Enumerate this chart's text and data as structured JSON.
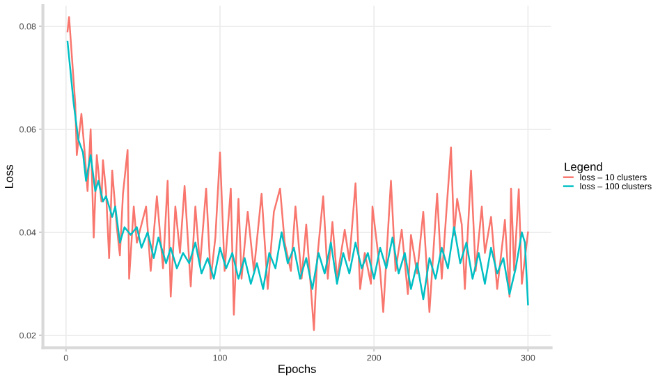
{
  "chart_data": {
    "type": "line",
    "xlabel": "Epochs",
    "ylabel": "Loss",
    "legend_title": "Legend",
    "legend": "right",
    "grid": true,
    "xlim": [
      -15,
      315
    ],
    "ylim": [
      0.0176,
      0.084
    ],
    "xticks": [
      0,
      100,
      200,
      300
    ],
    "yticks": [
      0.02,
      0.04,
      0.06,
      0.08
    ],
    "series": [
      {
        "name": "loss – 10 clusters",
        "color": "#f8766d",
        "x": [
          1,
          2,
          6,
          7,
          10,
          12,
          14,
          16,
          18,
          20,
          23,
          24,
          26,
          28,
          30,
          33,
          35,
          37,
          40,
          41,
          44,
          46,
          52,
          55,
          59,
          63,
          66,
          68,
          71,
          74,
          77,
          81,
          84,
          87,
          91,
          94,
          97,
          100,
          103,
          107,
          109,
          112,
          114,
          118,
          122,
          125,
          127,
          131,
          135,
          139,
          142,
          146,
          149,
          153,
          156,
          161,
          163,
          167,
          170,
          173,
          176,
          181,
          184,
          188,
          191,
          194,
          198,
          199,
          204,
          206,
          211,
          214,
          218,
          222,
          224,
          228,
          232,
          236,
          241,
          244,
          247,
          250,
          252,
          254,
          257,
          259,
          263,
          266,
          270,
          272,
          276,
          280,
          284,
          285,
          288,
          289,
          291,
          294,
          296,
          300
        ],
        "values": [
          0.079,
          0.0818,
          0.065,
          0.055,
          0.063,
          0.056,
          0.048,
          0.06,
          0.039,
          0.055,
          0.046,
          0.054,
          0.048,
          0.035,
          0.052,
          0.041,
          0.0355,
          0.0475,
          0.056,
          0.031,
          0.045,
          0.038,
          0.045,
          0.0325,
          0.047,
          0.033,
          0.05,
          0.0275,
          0.045,
          0.036,
          0.049,
          0.0295,
          0.045,
          0.0335,
          0.0485,
          0.031,
          0.039,
          0.0555,
          0.0325,
          0.0485,
          0.024,
          0.0465,
          0.031,
          0.044,
          0.0325,
          0.0415,
          0.0475,
          0.029,
          0.044,
          0.0485,
          0.038,
          0.0325,
          0.045,
          0.031,
          0.0415,
          0.021,
          0.0345,
          0.047,
          0.031,
          0.042,
          0.031,
          0.0405,
          0.0345,
          0.0495,
          0.029,
          0.036,
          0.03,
          0.045,
          0.0325,
          0.0245,
          0.05,
          0.0325,
          0.0405,
          0.028,
          0.0395,
          0.032,
          0.044,
          0.0245,
          0.0475,
          0.031,
          0.044,
          0.0565,
          0.0395,
          0.0465,
          0.0415,
          0.029,
          0.052,
          0.0325,
          0.045,
          0.036,
          0.043,
          0.029,
          0.0395,
          0.0424,
          0.0275,
          0.0485,
          0.0326,
          0.0484,
          0.03,
          0.04
        ]
      },
      {
        "name": "loss – 100 clusters",
        "color": "#00bfc4",
        "x": [
          1,
          5,
          8,
          11,
          13,
          16,
          19,
          21,
          24,
          26,
          30,
          32,
          35,
          38,
          42,
          46,
          49,
          53,
          57,
          60,
          65,
          68,
          72,
          76,
          80,
          84,
          88,
          92,
          96,
          100,
          104,
          108,
          112,
          116,
          120,
          124,
          128,
          132,
          136,
          140,
          144,
          148,
          152,
          156,
          160,
          164,
          168,
          172,
          176,
          180,
          184,
          188,
          192,
          196,
          200,
          204,
          208,
          212,
          216,
          220,
          224,
          228,
          232,
          236,
          240,
          244,
          248,
          252,
          256,
          260,
          264,
          268,
          272,
          276,
          280,
          284,
          288,
          292,
          296,
          298,
          300
        ],
        "values": [
          0.077,
          0.065,
          0.058,
          0.0555,
          0.05,
          0.055,
          0.048,
          0.05,
          0.046,
          0.047,
          0.043,
          0.045,
          0.038,
          0.041,
          0.0395,
          0.041,
          0.037,
          0.04,
          0.035,
          0.039,
          0.034,
          0.037,
          0.033,
          0.036,
          0.034,
          0.038,
          0.032,
          0.035,
          0.031,
          0.037,
          0.033,
          0.036,
          0.031,
          0.035,
          0.03,
          0.034,
          0.029,
          0.036,
          0.033,
          0.04,
          0.034,
          0.037,
          0.031,
          0.035,
          0.029,
          0.036,
          0.032,
          0.038,
          0.03,
          0.036,
          0.032,
          0.038,
          0.033,
          0.036,
          0.031,
          0.037,
          0.033,
          0.039,
          0.032,
          0.036,
          0.029,
          0.034,
          0.027,
          0.035,
          0.031,
          0.037,
          0.033,
          0.041,
          0.034,
          0.038,
          0.031,
          0.036,
          0.03,
          0.037,
          0.032,
          0.035,
          0.028,
          0.033,
          0.04,
          0.038,
          0.026
        ]
      }
    ]
  }
}
